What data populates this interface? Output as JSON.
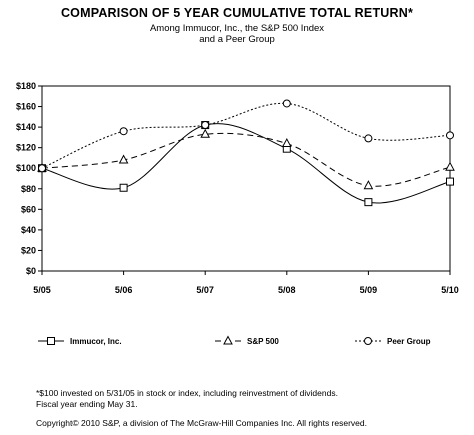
{
  "chart_data": {
    "type": "line",
    "title": "COMPARISON OF 5 YEAR CUMULATIVE TOTAL RETURN*",
    "subtitle_lines": [
      "Among Immucor, Inc., the S&P 500 Index",
      "and a Peer Group"
    ],
    "categories": [
      "5/05",
      "5/06",
      "5/07",
      "5/08",
      "5/09",
      "5/10"
    ],
    "y_ticks": [
      "$0",
      "$20",
      "$40",
      "$60",
      "$80",
      "$100",
      "$120",
      "$140",
      "$160",
      "$180"
    ],
    "ylim": [
      0,
      180
    ],
    "grid": false,
    "legend_position": "bottom",
    "series": [
      {
        "name": "Immucor, Inc.",
        "marker": "square",
        "dash": "solid",
        "values": [
          100,
          81,
          142,
          119,
          67,
          87
        ]
      },
      {
        "name": "S&P 500",
        "marker": "triangle",
        "dash": "dashed",
        "values": [
          100,
          108,
          133,
          124,
          83,
          101
        ]
      },
      {
        "name": "Peer Group",
        "marker": "circle",
        "dash": "dotted",
        "values": [
          100,
          136,
          142,
          163,
          129,
          132
        ]
      }
    ]
  },
  "footnotes": {
    "note1": "*$100 invested on 5/31/05 in stock or index, including reinvestment of dividends.",
    "note2": "Fiscal year ending May 31.",
    "copyright": "Copyright© 2010 S&P, a division of The McGraw-Hill Companies Inc. All rights reserved."
  }
}
